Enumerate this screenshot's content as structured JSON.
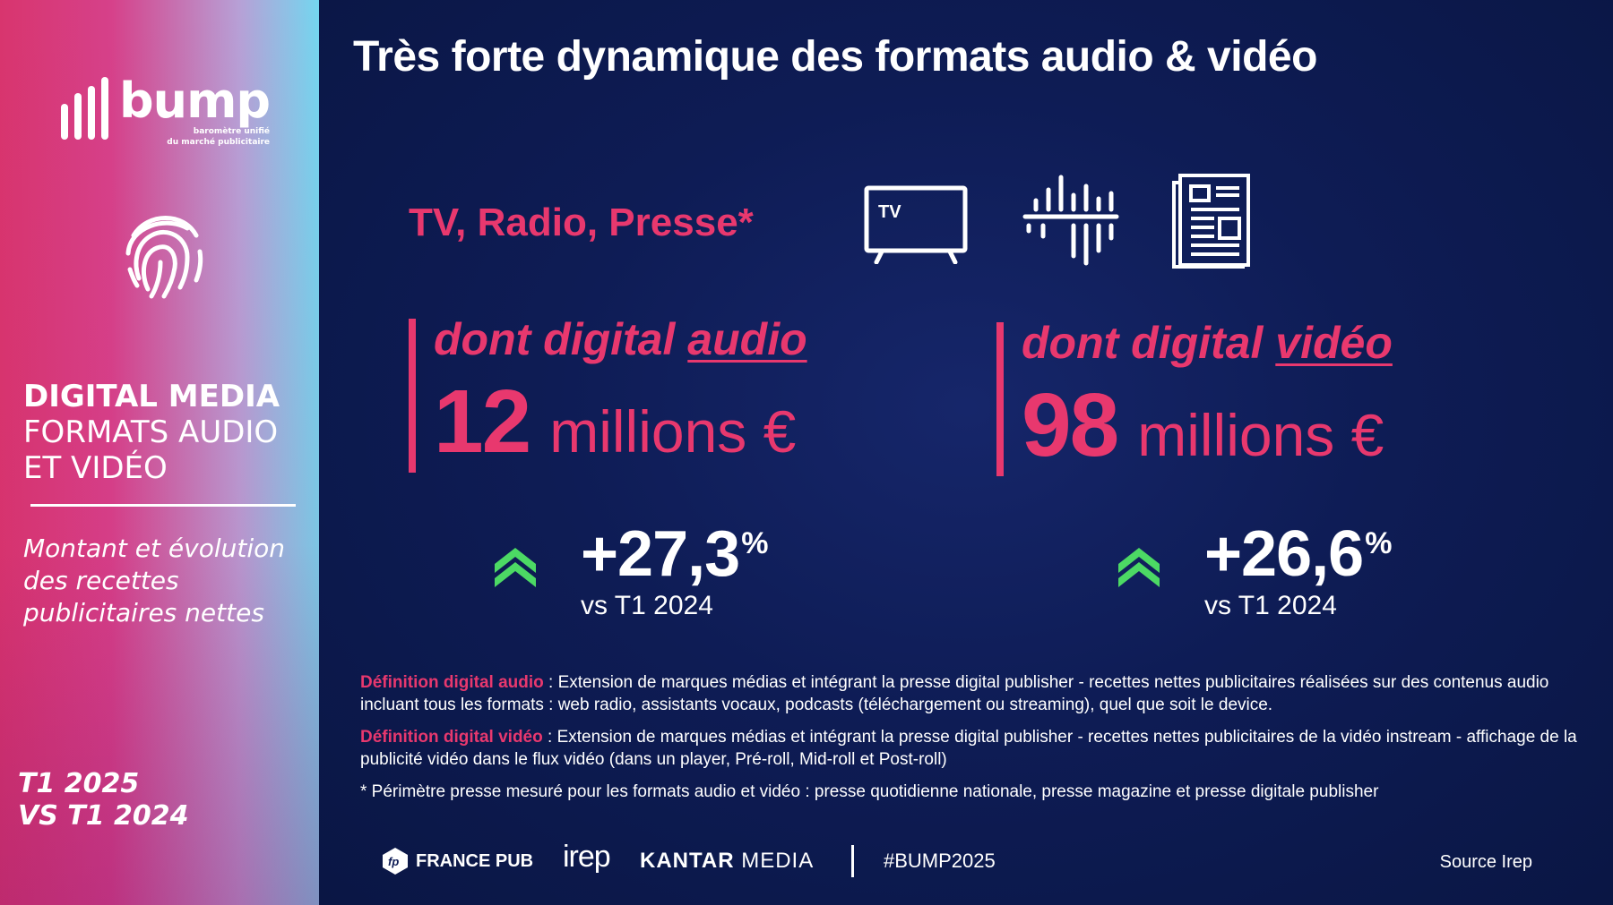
{
  "sidebar": {
    "logo_word": "bump",
    "logo_tagline_1": "baromètre unifié",
    "logo_tagline_2": "du marché publicitaire",
    "title_bold": "DIGITAL MEDIA",
    "title_line2": "FORMATS AUDIO",
    "title_line3": "ET VIDÉO",
    "description_line1": "Montant et évolution",
    "description_line2": "des recettes",
    "description_line3": "publicitaires nettes",
    "period_line1": "T1 2025",
    "period_line2": "VS T1 2024"
  },
  "main": {
    "title": "Très forte dynamique des formats audio & vidéo",
    "scope": "TV, Radio, Presse*",
    "tv_icon_label": "TV",
    "audio": {
      "label_prefix": "dont digital",
      "label_key": "audio",
      "value": "12",
      "unit": "millions €",
      "growth": "+27,3",
      "growth_unit": "%",
      "comparison": "vs T1 2024"
    },
    "video": {
      "label_prefix": "dont digital",
      "label_key": "vidéo",
      "value": "98",
      "unit": "millions €",
      "growth": "+26,6",
      "growth_unit": "%",
      "comparison": "vs T1 2024"
    },
    "definitions": {
      "audio_key": "Définition digital audio",
      "audio_text": " : Extension de marques médias et intégrant la presse digital publisher - recettes nettes publicitaires réalisées sur des contenus audio incluant tous les formats : web radio, assistants vocaux, podcasts (téléchargement ou streaming), quel que soit le device.",
      "video_key": "Définition digital vidéo",
      "video_text": " : Extension de marques médias et intégrant la presse digital publisher - recettes nettes publicitaires de la vidéo instream - affichage de la publicité vidéo dans le flux vidéo (dans un player, Pré-roll, Mid-roll et Post-roll)",
      "footnote": "* Périmètre presse mesuré pour les formats audio et vidéo : presse quotidienne nationale, presse magazine et presse digitale publisher"
    }
  },
  "footer": {
    "france_pub_mark": "fp",
    "france_pub": "FRANCE PUB",
    "irep": "irep",
    "kantar_bold": "KANTAR",
    "kantar_light": " MEDIA",
    "hashtag": "#BUMP2025",
    "source": "Source Irep"
  },
  "colors": {
    "accent": "#e8386e",
    "background": "#0e1c55",
    "growth_arrow": "#4cd964",
    "text": "#ffffff"
  },
  "icons": [
    "fingerprint-icon",
    "tv-icon",
    "radio-waves-icon",
    "newspaper-icon",
    "double-chevron-up-icon"
  ]
}
